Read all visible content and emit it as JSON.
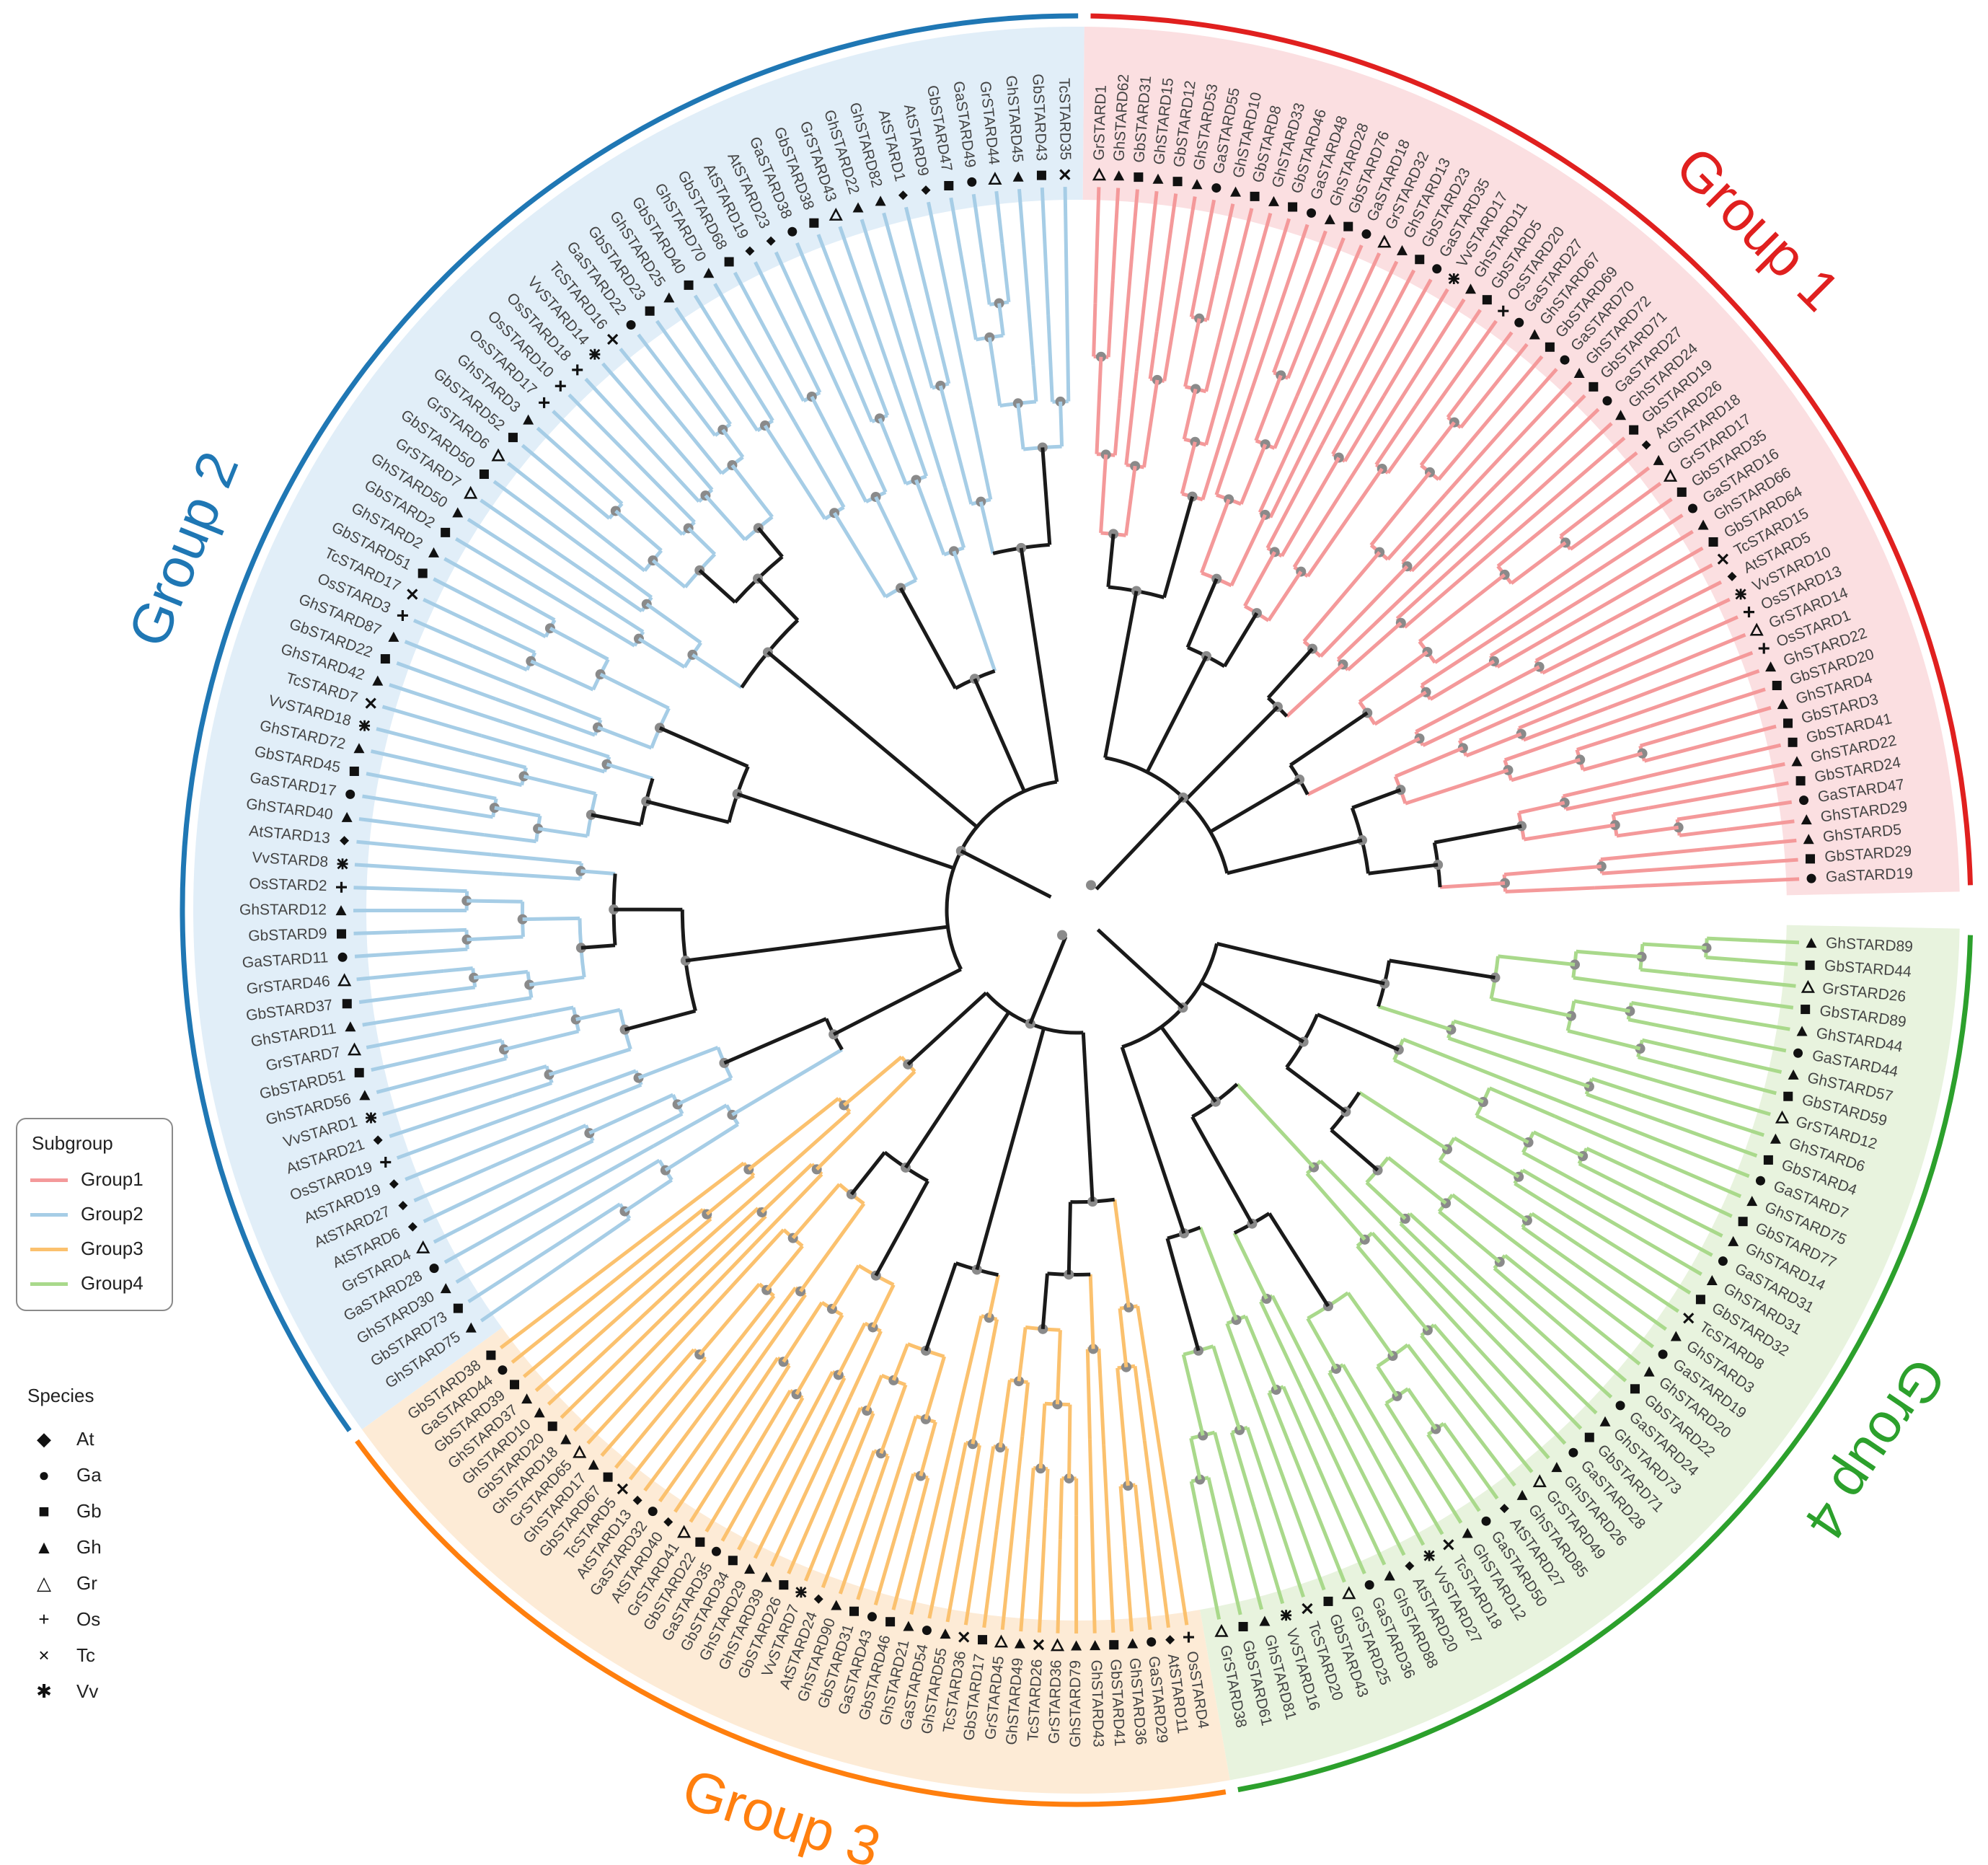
{
  "group_labels": [
    {
      "text": "Group 1",
      "color": "#e0201f"
    },
    {
      "text": "Group 2",
      "color": "#1f77b4"
    },
    {
      "text": "Group 3",
      "color": "#ff7f0e"
    },
    {
      "text": "Group 4",
      "color": "#2ca02c"
    }
  ],
  "subgroup_legend": {
    "title": "Subgroup",
    "items": [
      {
        "label": "Group1",
        "color": "#f4999a"
      },
      {
        "label": "Group2",
        "color": "#a6cde6"
      },
      {
        "label": "Group3",
        "color": "#fbc16e"
      },
      {
        "label": "Group4",
        "color": "#a9d98b"
      }
    ]
  },
  "species_legend": {
    "title": "Species",
    "items": [
      {
        "symbol": "◆",
        "label": "At"
      },
      {
        "symbol": "●",
        "label": "Ga"
      },
      {
        "symbol": "■",
        "label": "Gb"
      },
      {
        "symbol": "▲",
        "label": "Gh"
      },
      {
        "symbol": "△",
        "label": "Gr"
      },
      {
        "symbol": "+",
        "label": "Os"
      },
      {
        "symbol": "×",
        "label": "Tc"
      },
      {
        "symbol": "✱",
        "label": "Vv"
      }
    ]
  },
  "leaves": {
    "group1": [
      "GrSTARD1",
      "GhSTARD62",
      "GbSTARD31",
      "GhSTARD15",
      "GbSTARD12",
      "GhSTARD53",
      "GaSTARD55",
      "GhSTARD10",
      "GbSTARD8",
      "GhSTARD33",
      "GbSTARD46",
      "GaSTARD48",
      "GhSTARD28",
      "GbSTARD76",
      "GaSTARD18",
      "GrSTARD32",
      "GhSTARD13",
      "GbSTARD23",
      "GaSTARD35",
      "VvSTARD17",
      "GhSTARD11",
      "GbSTARD5",
      "OsSTARD20",
      "GaSTARD27",
      "GhSTARD67",
      "GbSTARD69",
      "GaSTARD70",
      "GhSTARD72",
      "GbSTARD71",
      "GaSTARD27",
      "GhSTARD24",
      "GbSTARD19",
      "AtSTARD26",
      "GhSTARD18",
      "GrSTARD17",
      "GbSTARD35",
      "GaSTARD16",
      "GhSTARD66",
      "GbSTARD64",
      "TcSTARD15",
      "AtSTARD5",
      "VvSTARD10",
      "OsSTARD13",
      "GrSTARD14",
      "OsSTARD1",
      "GhSTARD22",
      "GbSTARD20",
      "GhSTARD4",
      "GbSTARD3",
      "GbSTARD41",
      "GhSTARD22",
      "GbSTARD24",
      "GaSTARD47",
      "GhSTARD29",
      "GhSTARD5",
      "GbSTARD29",
      "GaSTARD19"
    ],
    "group2": [
      "GhSTARD75",
      "GbSTARD73",
      "GhSTARD30",
      "GaSTARD28",
      "GrSTARD4",
      "AtSTARD6",
      "AtSTARD27",
      "AtSTARD19",
      "OsSTARD19",
      "AtSTARD21",
      "VvSTARD1",
      "GhSTARD56",
      "GbSTARD51",
      "GrSTARD7",
      "GhSTARD11",
      "GbSTARD37",
      "GrSTARD46",
      "GaSTARD11",
      "GbSTARD9",
      "GhSTARD12",
      "OsSTARD2",
      "VvSTARD8",
      "AtSTARD13",
      "GhSTARD40",
      "GaSTARD17",
      "GbSTARD45",
      "GhSTARD72",
      "VvSTARD18",
      "TcSTARD7",
      "GhSTARD42",
      "GbSTARD22",
      "GhSTARD87",
      "OsSTARD3",
      "TcSTARD17",
      "GbSTARD51",
      "GhSTARD2",
      "GbSTARD2",
      "GhSTARD50",
      "GrSTARD7",
      "GbSTARD50",
      "GrSTARD6",
      "GbSTARD52",
      "GhSTARD3",
      "OsSTARD17",
      "OsSTARD10",
      "OsSTARD18",
      "VvSTARD14",
      "TcSTARD16",
      "GaSTARD22",
      "GbSTARD23",
      "GhSTARD25",
      "GbSTARD40",
      "GhSTARD70",
      "GbSTARD68",
      "AtSTARD19",
      "AtSTARD23",
      "GaSTARD38",
      "GbSTARD38",
      "GrSTARD43",
      "GhSTARD22",
      "GhSTARD82",
      "AtSTARD1",
      "AtSTARD9",
      "GbSTARD47",
      "GaSTARD49",
      "GrSTARD44",
      "GhSTARD45",
      "GbSTARD43",
      "TcSTARD35"
    ],
    "group3": [
      "OsSTARD4",
      "AtSTARD11",
      "GaSTARD29",
      "GhSTARD36",
      "GbSTARD41",
      "GhSTARD43",
      "GhSTARD79",
      "GrSTARD36",
      "TcSTARD26",
      "GhSTARD49",
      "GrSTARD45",
      "GbSTARD17",
      "TcSTARD36",
      "GhSTARD55",
      "GaSTARD54",
      "GhSTARD21",
      "GbSTARD46",
      "GaSTARD43",
      "GbSTARD31",
      "GhSTARD90",
      "AtSTARD24",
      "VvSTARD7",
      "GbSTARD26",
      "GhSTARD39",
      "GhSTARD29",
      "GbSTARD34",
      "GaSTARD35",
      "GbSTARD22",
      "GrSTARD41",
      "AtSTARD40",
      "GaSTARD32",
      "AtSTARD13",
      "TcSTARD5",
      "GbSTARD67",
      "GhSTARD17",
      "GrSTARD65",
      "GhSTARD18",
      "GbSTARD20",
      "GhSTARD10",
      "GhSTARD37",
      "GbSTARD39",
      "GaSTARD44",
      "GbSTARD38"
    ],
    "group4": [
      "GhSTARD89",
      "GbSTARD44",
      "GrSTARD26",
      "GbSTARD89",
      "GhSTARD44",
      "GaSTARD44",
      "GhSTARD57",
      "GbSTARD59",
      "GrSTARD12",
      "GhSTARD6",
      "GbSTARD4",
      "GaSTARD7",
      "GhSTARD75",
      "GbSTARD77",
      "GhSTARD14",
      "GaSTARD31",
      "GhSTARD31",
      "GbSTARD32",
      "TcSTARD8",
      "GhSTARD3",
      "GaSTARD19",
      "GhSTARD20",
      "GbSTARD22",
      "GaSTARD24",
      "GhSTARD73",
      "GbSTARD71",
      "GaSTARD28",
      "GhSTARD26",
      "GrSTARD49",
      "GhSTARD85",
      "AtSTARD27",
      "GaSTARD50",
      "GhSTARD12",
      "TcSTARD18",
      "VvSTARD27",
      "AtSTARD20",
      "GhSTARD88",
      "GaSTARD36",
      "GrSTARD25",
      "GbSTARD43",
      "TcSTARD20",
      "VvSTARD16",
      "GhSTARD81",
      "GbSTARD61",
      "GrSTARD38"
    ]
  }
}
